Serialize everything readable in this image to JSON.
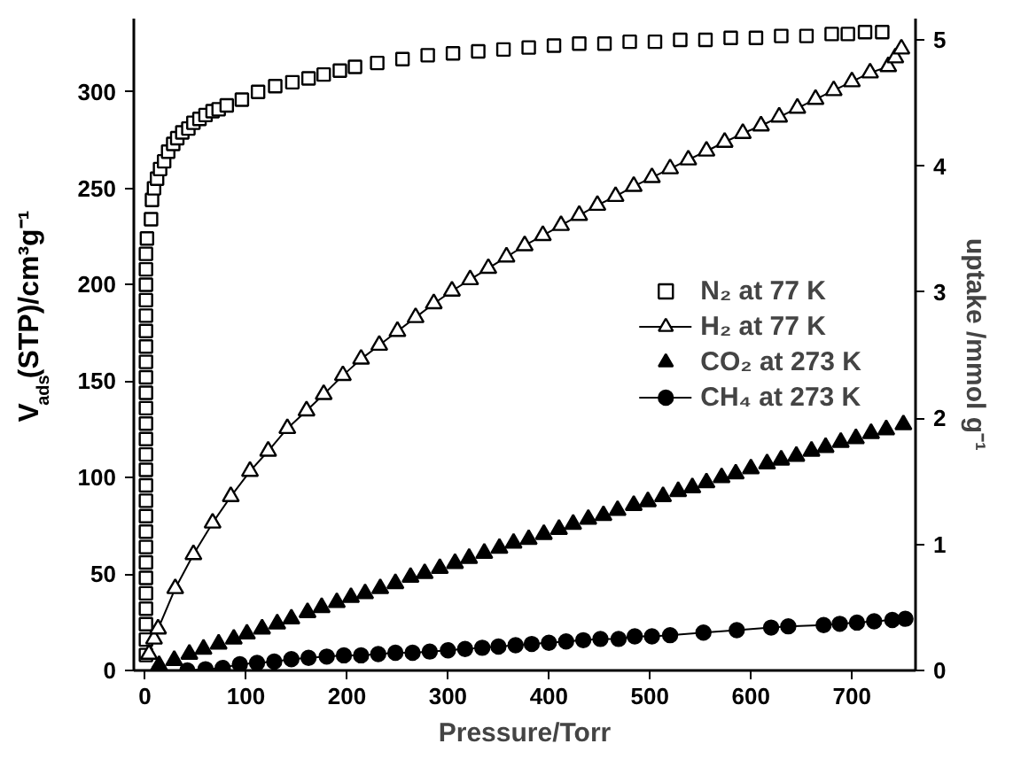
{
  "chart_data": {
    "type": "scatter",
    "xlabel": "Pressure/Torr",
    "ylabel": "V$_{ads}$(STP)/cm³g⁻¹",
    "y2label": "uptake /mmol g⁻¹",
    "xlim": [
      -11,
      763
    ],
    "xticks": [
      0,
      100,
      200,
      300,
      400,
      500,
      600,
      700
    ],
    "ylim": [
      0,
      338
    ],
    "yticks": [
      0,
      50,
      100,
      150,
      200,
      250,
      300
    ],
    "y2lim": [
      0,
      5.17
    ],
    "y2ticks": [
      0,
      1,
      2,
      3,
      4,
      5
    ],
    "grid": false,
    "legend": "right",
    "series": [
      {
        "name": "N₂ at 77 K",
        "marker": "square_open",
        "color": "#000000",
        "x": [
          1,
          1,
          1,
          1,
          1,
          1,
          1,
          1,
          1,
          1,
          1,
          1,
          1,
          1,
          1,
          1,
          1,
          1,
          1,
          1,
          1,
          1,
          1,
          1,
          1,
          1,
          1,
          2,
          6,
          7,
          9,
          12,
          15,
          19,
          23,
          28,
          32,
          37,
          43,
          48,
          54,
          60,
          67,
          73,
          81,
          96,
          112,
          129,
          146,
          162,
          177,
          193,
          208,
          230,
          255,
          280,
          305,
          330,
          355,
          380,
          405,
          430,
          455,
          480,
          505,
          530,
          555,
          580,
          605,
          630,
          655,
          680,
          696,
          713,
          730
        ],
        "values": [
          8,
          16,
          24,
          32,
          40,
          48,
          56,
          64,
          72,
          80,
          88,
          96,
          104,
          112,
          120,
          128,
          136,
          144,
          152,
          160,
          168,
          176,
          184,
          192,
          200,
          208,
          216,
          224,
          234,
          244,
          250,
          255,
          260,
          264,
          269,
          273,
          276,
          279,
          281,
          284,
          286,
          288,
          290,
          291,
          293,
          296,
          300,
          303,
          305,
          307,
          309,
          311,
          313,
          315,
          317,
          319,
          320,
          321,
          322,
          323,
          324,
          325,
          325,
          326,
          326,
          327,
          327,
          328,
          328,
          329,
          329,
          330,
          330,
          331,
          331
        ]
      },
      {
        "name": "H₂ at 77 K",
        "type": "line",
        "axis": "y2",
        "marker": "triangle_open",
        "line_style": "solid",
        "color": "#000000",
        "x": [
          4,
          9,
          13,
          30,
          48,
          67,
          85,
          104,
          122,
          141,
          160,
          177,
          196,
          214,
          232,
          250,
          268,
          286,
          304,
          322,
          340,
          358,
          376,
          394,
          412,
          430,
          448,
          466,
          484,
          502,
          520,
          538,
          556,
          574,
          592,
          610,
          628,
          646,
          664,
          682,
          700,
          718,
          736,
          743,
          749
        ],
        "values": [
          0.13,
          0.25,
          0.33,
          0.65,
          0.92,
          1.17,
          1.38,
          1.58,
          1.74,
          1.92,
          2.06,
          2.19,
          2.34,
          2.47,
          2.58,
          2.69,
          2.8,
          2.91,
          3.01,
          3.1,
          3.19,
          3.28,
          3.37,
          3.45,
          3.53,
          3.61,
          3.69,
          3.76,
          3.84,
          3.91,
          3.98,
          4.05,
          4.12,
          4.19,
          4.26,
          4.32,
          4.39,
          4.46,
          4.53,
          4.6,
          4.67,
          4.74,
          4.79,
          4.86,
          4.93
        ]
      },
      {
        "name": "CO₂ at 273 K",
        "axis": "y2",
        "marker": "triangle",
        "color": "#000000",
        "x": [
          14,
          29,
          44,
          58,
          73,
          88,
          101,
          116,
          131,
          145,
          161,
          175,
          190,
          204,
          218,
          233,
          248,
          263,
          277,
          292,
          307,
          321,
          336,
          351,
          365,
          380,
          395,
          410,
          424,
          439,
          454,
          468,
          484,
          498,
          513,
          528,
          542,
          556,
          571,
          585,
          600,
          616,
          630,
          645,
          660,
          674,
          689,
          704,
          719,
          734,
          751
        ],
        "values": [
          0.04,
          0.08,
          0.13,
          0.17,
          0.21,
          0.25,
          0.29,
          0.33,
          0.37,
          0.41,
          0.46,
          0.5,
          0.54,
          0.58,
          0.61,
          0.65,
          0.69,
          0.74,
          0.77,
          0.81,
          0.85,
          0.89,
          0.93,
          0.97,
          1.01,
          1.04,
          1.08,
          1.12,
          1.16,
          1.2,
          1.23,
          1.27,
          1.31,
          1.34,
          1.38,
          1.42,
          1.45,
          1.49,
          1.53,
          1.56,
          1.6,
          1.64,
          1.67,
          1.7,
          1.74,
          1.77,
          1.81,
          1.84,
          1.88,
          1.91,
          1.95
        ]
      },
      {
        "name": "CH₄ at 273 K",
        "type": "line",
        "axis": "y2",
        "marker": "circle",
        "line_style": "solid",
        "color": "#000000",
        "x": [
          14,
          42,
          60,
          77,
          94,
          111,
          128,
          145,
          162,
          180,
          197,
          214,
          231,
          248,
          265,
          282,
          300,
          317,
          334,
          350,
          367,
          383,
          400,
          417,
          434,
          451,
          469,
          485,
          502,
          520,
          553,
          586,
          620,
          637,
          672,
          688,
          705,
          722,
          740,
          753
        ],
        "values": [
          0,
          0,
          0.01,
          0.02,
          0.05,
          0.06,
          0.07,
          0.09,
          0.1,
          0.11,
          0.12,
          0.12,
          0.13,
          0.14,
          0.14,
          0.15,
          0.16,
          0.17,
          0.18,
          0.19,
          0.2,
          0.21,
          0.22,
          0.23,
          0.24,
          0.25,
          0.25,
          0.27,
          0.27,
          0.28,
          0.3,
          0.32,
          0.34,
          0.35,
          0.36,
          0.37,
          0.38,
          0.39,
          0.4,
          0.41
        ]
      }
    ]
  }
}
